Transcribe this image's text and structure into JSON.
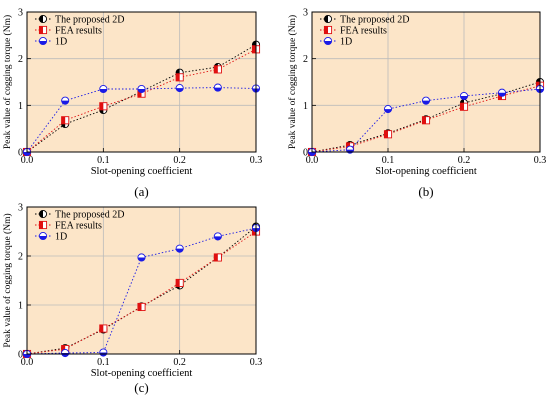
{
  "chart_data": [
    {
      "panel": "(a)",
      "type": "line",
      "xlabel": "Slot-opening coefficient",
      "ylabel": "Peak value of cogging torque (Nm)",
      "xlim": [
        0,
        0.3
      ],
      "ylim": [
        0,
        3
      ],
      "x_ticks": [
        "0.0",
        "0.1",
        "0.2",
        "0.3"
      ],
      "y_ticks": [
        "0",
        "1",
        "2",
        "3"
      ],
      "grid": true,
      "legend": "top-left",
      "series": [
        {
          "name": "The proposed 2D",
          "x": [
            0,
            0.05,
            0.1,
            0.15,
            0.2,
            0.25,
            0.3
          ],
          "y": [
            0,
            0.6,
            0.9,
            1.3,
            1.7,
            1.82,
            2.3
          ]
        },
        {
          "name": "FEA results",
          "x": [
            0,
            0.05,
            0.1,
            0.15,
            0.2,
            0.25,
            0.3
          ],
          "y": [
            0,
            0.68,
            0.98,
            1.25,
            1.6,
            1.77,
            2.2
          ]
        },
        {
          "name": "1D",
          "x": [
            0,
            0.05,
            0.1,
            0.15,
            0.2,
            0.25,
            0.3
          ],
          "y": [
            0,
            1.1,
            1.35,
            1.35,
            1.37,
            1.38,
            1.36
          ]
        }
      ]
    },
    {
      "panel": "(b)",
      "type": "line",
      "xlabel": "Slot-opening coefficient",
      "ylabel": "Peak value of cogging torque (Nm)",
      "xlim": [
        0,
        0.3
      ],
      "ylim": [
        0,
        3
      ],
      "x_ticks": [
        "0.0",
        "0.1",
        "0.2",
        "0.3"
      ],
      "y_ticks": [
        "0",
        "1",
        "2",
        "3"
      ],
      "grid": true,
      "legend": "top-left",
      "series": [
        {
          "name": "The proposed 2D",
          "x": [
            0,
            0.05,
            0.1,
            0.15,
            0.2,
            0.25,
            0.3
          ],
          "y": [
            0,
            0.15,
            0.4,
            0.7,
            1.05,
            1.25,
            1.5
          ]
        },
        {
          "name": "FEA results",
          "x": [
            0,
            0.05,
            0.1,
            0.15,
            0.2,
            0.25,
            0.3
          ],
          "y": [
            0,
            0.12,
            0.38,
            0.68,
            0.97,
            1.2,
            1.42
          ]
        },
        {
          "name": "1D",
          "x": [
            0,
            0.05,
            0.1,
            0.15,
            0.2,
            0.25,
            0.3
          ],
          "y": [
            0,
            0.05,
            0.92,
            1.1,
            1.2,
            1.27,
            1.35
          ]
        }
      ]
    },
    {
      "panel": "(c)",
      "type": "line",
      "xlabel": "Slot-opening coefficient",
      "ylabel": "Peak value of cogging torque (Nm)",
      "xlim": [
        0,
        0.3
      ],
      "ylim": [
        0,
        3
      ],
      "x_ticks": [
        "0.0",
        "0.1",
        "0.2",
        "0.3"
      ],
      "y_ticks": [
        "0",
        "1",
        "2",
        "3"
      ],
      "grid": true,
      "legend": "top-left",
      "series": [
        {
          "name": "The proposed 2D",
          "x": [
            0,
            0.05,
            0.1,
            0.15,
            0.2,
            0.25,
            0.3
          ],
          "y": [
            0,
            0.12,
            0.5,
            0.97,
            1.4,
            1.97,
            2.6
          ]
        },
        {
          "name": "FEA results",
          "x": [
            0,
            0.05,
            0.1,
            0.15,
            0.2,
            0.25,
            0.3
          ],
          "y": [
            0,
            0.1,
            0.52,
            0.96,
            1.45,
            1.97,
            2.5
          ]
        },
        {
          "name": "1D",
          "x": [
            0,
            0.05,
            0.1,
            0.15,
            0.2,
            0.25,
            0.3
          ],
          "y": [
            0,
            0.02,
            0.03,
            1.97,
            2.15,
            2.4,
            2.57
          ]
        }
      ]
    }
  ],
  "style": {
    "plot_background": "#fce5c8",
    "grid_color": "#bbbbbb",
    "series_colors": [
      "#000000",
      "#e01010",
      "#1a1ae6"
    ],
    "series_markers": [
      "half-circle",
      "half-square",
      "half-circle-blue"
    ]
  }
}
